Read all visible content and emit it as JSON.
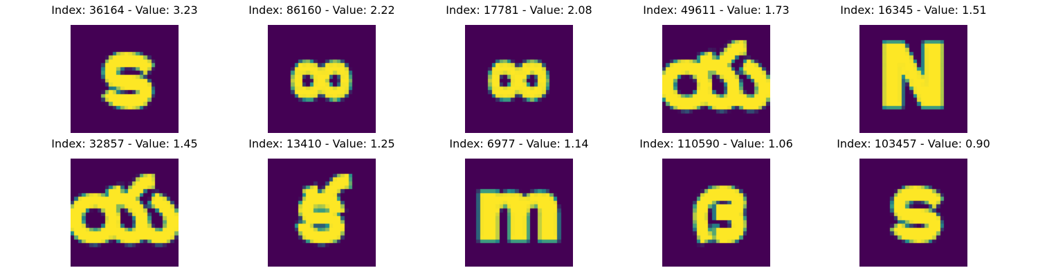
{
  "figure": {
    "background": "#ffffff",
    "colormap_low": "#440154",
    "colormap_mid": "#21918c",
    "colormap_high": "#fde725",
    "panels": [
      {
        "title": "Index: 36164 - Value: 3.23",
        "index": 36164,
        "value": 3.23,
        "glyph": "ട"
      },
      {
        "title": "Index: 86160 - Value: 2.22",
        "index": 86160,
        "value": 2.22,
        "glyph": "∞"
      },
      {
        "title": "Index: 17781 - Value: 2.08",
        "index": 17781,
        "value": 2.08,
        "glyph": "∞"
      },
      {
        "title": "Index: 49611 - Value: 1.73",
        "index": 49611,
        "value": 1.73,
        "glyph": "య"
      },
      {
        "title": "Index: 16345 - Value: 1.51",
        "index": 16345,
        "value": 1.51,
        "glyph": "N"
      },
      {
        "title": "Index: 32857 - Value: 1.45",
        "index": 32857,
        "value": 1.45,
        "glyph": "య"
      },
      {
        "title": "Index: 13410 - Value: 1.25",
        "index": 13410,
        "value": 1.25,
        "glyph": "క"
      },
      {
        "title": "Index: 6977 - Value: 1.14",
        "index": 6977,
        "value": 1.14,
        "glyph": "m"
      },
      {
        "title": "Index: 110590 - Value: 1.06",
        "index": 110590,
        "value": 1.06,
        "glyph": "ദ"
      },
      {
        "title": "Index: 103457 - Value: 0.90",
        "index": 103457,
        "value": 0.9,
        "glyph": "ട"
      }
    ]
  }
}
